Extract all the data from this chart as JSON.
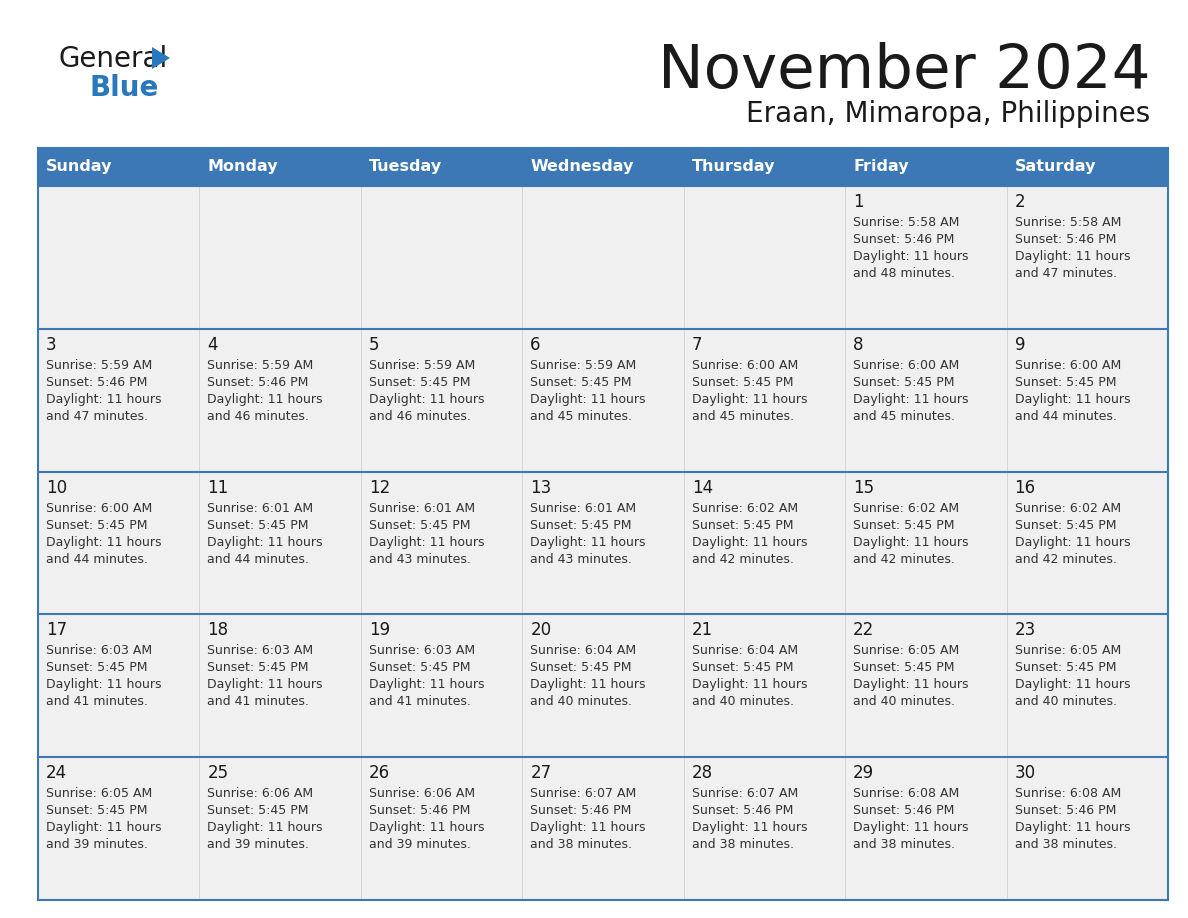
{
  "title": "November 2024",
  "subtitle": "Eraan, Mimaropa, Philippines",
  "header_color": "#3b78b5",
  "header_text_color": "#FFFFFF",
  "day_names": [
    "Sunday",
    "Monday",
    "Tuesday",
    "Wednesday",
    "Thursday",
    "Friday",
    "Saturday"
  ],
  "row_bg_color": "#f0f0f0",
  "white_color": "#FFFFFF",
  "border_color": "#3b78b5",
  "text_color": "#1a1a1a",
  "day_num_color": "#1a1a1a",
  "cell_text_color": "#333333",
  "logo_black": "#1a1a1a",
  "logo_blue": "#2878BE",
  "calendar_data": [
    [
      {
        "day": "",
        "sunrise": "",
        "sunset": "",
        "daylight": ""
      },
      {
        "day": "",
        "sunrise": "",
        "sunset": "",
        "daylight": ""
      },
      {
        "day": "",
        "sunrise": "",
        "sunset": "",
        "daylight": ""
      },
      {
        "day": "",
        "sunrise": "",
        "sunset": "",
        "daylight": ""
      },
      {
        "day": "",
        "sunrise": "",
        "sunset": "",
        "daylight": ""
      },
      {
        "day": "1",
        "sunrise": "5:58 AM",
        "sunset": "5:46 PM",
        "daylight": "11 hours and 48 minutes."
      },
      {
        "day": "2",
        "sunrise": "5:58 AM",
        "sunset": "5:46 PM",
        "daylight": "11 hours and 47 minutes."
      }
    ],
    [
      {
        "day": "3",
        "sunrise": "5:59 AM",
        "sunset": "5:46 PM",
        "daylight": "11 hours and 47 minutes."
      },
      {
        "day": "4",
        "sunrise": "5:59 AM",
        "sunset": "5:46 PM",
        "daylight": "11 hours and 46 minutes."
      },
      {
        "day": "5",
        "sunrise": "5:59 AM",
        "sunset": "5:45 PM",
        "daylight": "11 hours and 46 minutes."
      },
      {
        "day": "6",
        "sunrise": "5:59 AM",
        "sunset": "5:45 PM",
        "daylight": "11 hours and 45 minutes."
      },
      {
        "day": "7",
        "sunrise": "6:00 AM",
        "sunset": "5:45 PM",
        "daylight": "11 hours and 45 minutes."
      },
      {
        "day": "8",
        "sunrise": "6:00 AM",
        "sunset": "5:45 PM",
        "daylight": "11 hours and 45 minutes."
      },
      {
        "day": "9",
        "sunrise": "6:00 AM",
        "sunset": "5:45 PM",
        "daylight": "11 hours and 44 minutes."
      }
    ],
    [
      {
        "day": "10",
        "sunrise": "6:00 AM",
        "sunset": "5:45 PM",
        "daylight": "11 hours and 44 minutes."
      },
      {
        "day": "11",
        "sunrise": "6:01 AM",
        "sunset": "5:45 PM",
        "daylight": "11 hours and 44 minutes."
      },
      {
        "day": "12",
        "sunrise": "6:01 AM",
        "sunset": "5:45 PM",
        "daylight": "11 hours and 43 minutes."
      },
      {
        "day": "13",
        "sunrise": "6:01 AM",
        "sunset": "5:45 PM",
        "daylight": "11 hours and 43 minutes."
      },
      {
        "day": "14",
        "sunrise": "6:02 AM",
        "sunset": "5:45 PM",
        "daylight": "11 hours and 42 minutes."
      },
      {
        "day": "15",
        "sunrise": "6:02 AM",
        "sunset": "5:45 PM",
        "daylight": "11 hours and 42 minutes."
      },
      {
        "day": "16",
        "sunrise": "6:02 AM",
        "sunset": "5:45 PM",
        "daylight": "11 hours and 42 minutes."
      }
    ],
    [
      {
        "day": "17",
        "sunrise": "6:03 AM",
        "sunset": "5:45 PM",
        "daylight": "11 hours and 41 minutes."
      },
      {
        "day": "18",
        "sunrise": "6:03 AM",
        "sunset": "5:45 PM",
        "daylight": "11 hours and 41 minutes."
      },
      {
        "day": "19",
        "sunrise": "6:03 AM",
        "sunset": "5:45 PM",
        "daylight": "11 hours and 41 minutes."
      },
      {
        "day": "20",
        "sunrise": "6:04 AM",
        "sunset": "5:45 PM",
        "daylight": "11 hours and 40 minutes."
      },
      {
        "day": "21",
        "sunrise": "6:04 AM",
        "sunset": "5:45 PM",
        "daylight": "11 hours and 40 minutes."
      },
      {
        "day": "22",
        "sunrise": "6:05 AM",
        "sunset": "5:45 PM",
        "daylight": "11 hours and 40 minutes."
      },
      {
        "day": "23",
        "sunrise": "6:05 AM",
        "sunset": "5:45 PM",
        "daylight": "11 hours and 40 minutes."
      }
    ],
    [
      {
        "day": "24",
        "sunrise": "6:05 AM",
        "sunset": "5:45 PM",
        "daylight": "11 hours and 39 minutes."
      },
      {
        "day": "25",
        "sunrise": "6:06 AM",
        "sunset": "5:45 PM",
        "daylight": "11 hours and 39 minutes."
      },
      {
        "day": "26",
        "sunrise": "6:06 AM",
        "sunset": "5:46 PM",
        "daylight": "11 hours and 39 minutes."
      },
      {
        "day": "27",
        "sunrise": "6:07 AM",
        "sunset": "5:46 PM",
        "daylight": "11 hours and 38 minutes."
      },
      {
        "day": "28",
        "sunrise": "6:07 AM",
        "sunset": "5:46 PM",
        "daylight": "11 hours and 38 minutes."
      },
      {
        "day": "29",
        "sunrise": "6:08 AM",
        "sunset": "5:46 PM",
        "daylight": "11 hours and 38 minutes."
      },
      {
        "day": "30",
        "sunrise": "6:08 AM",
        "sunset": "5:46 PM",
        "daylight": "11 hours and 38 minutes."
      }
    ]
  ]
}
